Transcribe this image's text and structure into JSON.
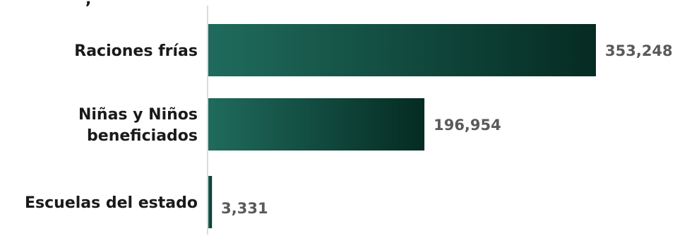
{
  "chart_data": {
    "type": "bar",
    "orientation": "horizontal",
    "categories": [
      [
        "Raciones frías"
      ],
      [
        "Niñas y Niños",
        "beneficiados"
      ],
      [
        "Escuelas del estado"
      ]
    ],
    "values": [
      353248,
      196954,
      3331
    ],
    "value_labels": [
      "353,248",
      "196,954",
      "3,331"
    ],
    "title": "",
    "xlabel": "",
    "ylabel": "",
    "xlim": [
      0,
      353248
    ],
    "grid": false,
    "legend": "none",
    "top_fragment": ",",
    "colors": {
      "bar_start": "#1f6b5d",
      "bar_end": "#052b22",
      "axis": "#cfcfcf",
      "category_text": "#1a1a1a",
      "value_text": "#5a5a5a"
    }
  }
}
